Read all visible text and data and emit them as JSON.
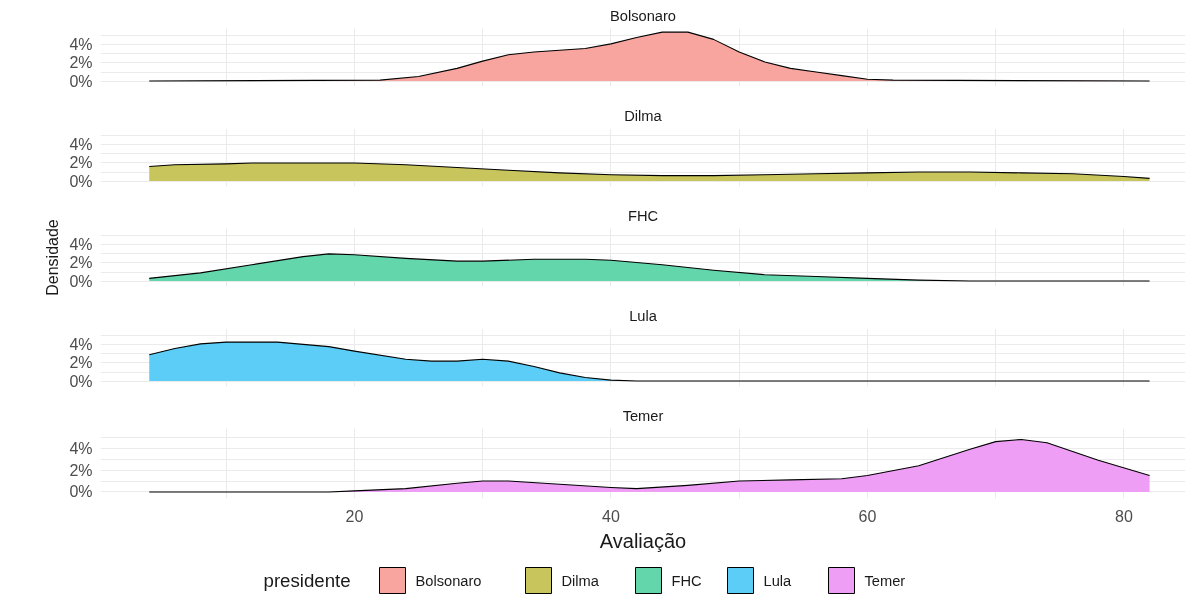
{
  "chart_data": [
    {
      "type": "area",
      "title": "Bolsonaro",
      "legend": "bottom",
      "legend_title": "presidente",
      "grid": true,
      "tick_labels": "y",
      "xlim": [
        0.2,
        84.8
      ],
      "ylim": [
        -0.6,
        5.8
      ],
      "xticks": [
        {
          "value": 10,
          "label": null
        },
        20,
        {
          "value": 30,
          "label": null
        },
        40,
        {
          "value": 50,
          "label": null
        },
        60,
        {
          "value": 70,
          "label": null
        },
        80
      ],
      "yticks": [
        {
          "value": 0,
          "label": "0%"
        },
        {
          "value": 1,
          "label": null
        },
        {
          "value": 2,
          "label": "2%"
        },
        {
          "value": 3,
          "label": null
        },
        {
          "value": 4,
          "label": "4%"
        },
        {
          "value": 5,
          "label": null
        }
      ],
      "x": [
        4,
        22,
        25,
        28,
        30,
        32,
        34,
        36,
        38,
        40,
        42,
        44,
        46,
        48,
        50,
        52,
        54,
        56,
        58,
        60,
        62,
        82
      ],
      "series": [
        {
          "name": "Bolsonaro",
          "color": "#f9a59f",
          "values": [
            0,
            0.1,
            0.5,
            1.4,
            2.2,
            2.9,
            3.2,
            3.4,
            3.6,
            4.1,
            4.8,
            5.4,
            5.4,
            4.6,
            3.2,
            2.1,
            1.4,
            1.0,
            0.6,
            0.2,
            0.1,
            0
          ]
        }
      ]
    },
    {
      "type": "area",
      "title": "Dilma",
      "legend": "bottom",
      "grid": true,
      "tick_labels": "y",
      "xlim": [
        0.2,
        84.8
      ],
      "ylim": [
        -0.6,
        5.8
      ],
      "xticks": [
        {
          "value": 10,
          "label": null
        },
        20,
        {
          "value": 30,
          "label": null
        },
        40,
        {
          "value": 50,
          "label": null
        },
        60,
        {
          "value": 70,
          "label": null
        },
        80
      ],
      "yticks": [
        {
          "value": 0,
          "label": "0%"
        },
        {
          "value": 1,
          "label": null
        },
        {
          "value": 2,
          "label": "2%"
        },
        {
          "value": 3,
          "label": null
        },
        {
          "value": 4,
          "label": "4%"
        },
        {
          "value": 5,
          "label": null
        }
      ],
      "x": [
        4,
        6,
        10,
        12,
        20,
        24,
        28,
        32,
        36,
        40,
        44,
        48,
        52,
        56,
        60,
        64,
        68,
        72,
        76,
        80,
        82
      ],
      "series": [
        {
          "name": "Dilma",
          "color": "#c8c55c",
          "values": [
            1.6,
            1.8,
            1.9,
            2.0,
            2.0,
            1.8,
            1.5,
            1.2,
            0.9,
            0.7,
            0.6,
            0.6,
            0.7,
            0.8,
            0.9,
            1.0,
            1.0,
            0.9,
            0.8,
            0.5,
            0.3
          ]
        }
      ]
    },
    {
      "type": "area",
      "title": "FHC",
      "ylabel": "Densidade",
      "legend": "bottom",
      "grid": true,
      "tick_labels": "y",
      "xlim": [
        0.2,
        84.8
      ],
      "ylim": [
        -0.6,
        5.8
      ],
      "xticks": [
        {
          "value": 10,
          "label": null
        },
        20,
        {
          "value": 30,
          "label": null
        },
        40,
        {
          "value": 50,
          "label": null
        },
        60,
        {
          "value": 70,
          "label": null
        },
        80
      ],
      "yticks": [
        {
          "value": 0,
          "label": "0%"
        },
        {
          "value": 1,
          "label": null
        },
        {
          "value": 2,
          "label": "2%"
        },
        {
          "value": 3,
          "label": null
        },
        {
          "value": 4,
          "label": "4%"
        },
        {
          "value": 5,
          "label": null
        }
      ],
      "x": [
        4,
        8,
        12,
        16,
        18,
        20,
        24,
        28,
        30,
        34,
        38,
        40,
        44,
        48,
        52,
        56,
        60,
        64,
        68,
        82
      ],
      "series": [
        {
          "name": "FHC",
          "color": "#64d6ab",
          "values": [
            0.3,
            0.9,
            1.8,
            2.7,
            3.0,
            2.9,
            2.5,
            2.2,
            2.2,
            2.4,
            2.4,
            2.3,
            1.8,
            1.2,
            0.7,
            0.5,
            0.3,
            0.1,
            0,
            0
          ]
        }
      ]
    },
    {
      "type": "area",
      "title": "Lula",
      "legend": "bottom",
      "grid": true,
      "tick_labels": "y",
      "xlim": [
        0.2,
        84.8
      ],
      "ylim": [
        -0.6,
        5.8
      ],
      "xticks": [
        {
          "value": 10,
          "label": null
        },
        20,
        {
          "value": 30,
          "label": null
        },
        40,
        {
          "value": 50,
          "label": null
        },
        60,
        {
          "value": 70,
          "label": null
        },
        80
      ],
      "yticks": [
        {
          "value": 0,
          "label": "0%"
        },
        {
          "value": 1,
          "label": null
        },
        {
          "value": 2,
          "label": "2%"
        },
        {
          "value": 3,
          "label": null
        },
        {
          "value": 4,
          "label": "4%"
        },
        {
          "value": 5,
          "label": null
        }
      ],
      "x": [
        4,
        6,
        8,
        10,
        14,
        18,
        20,
        24,
        26,
        28,
        30,
        32,
        34,
        36,
        38,
        40,
        42,
        82
      ],
      "series": [
        {
          "name": "Lula",
          "color": "#5bcdf6",
          "values": [
            2.9,
            3.6,
            4.1,
            4.3,
            4.3,
            3.8,
            3.3,
            2.4,
            2.2,
            2.2,
            2.4,
            2.2,
            1.6,
            0.9,
            0.4,
            0.1,
            0,
            0
          ]
        }
      ]
    },
    {
      "type": "area",
      "title": "Temer",
      "xlabel": "Avaliação",
      "legend": "bottom",
      "grid": true,
      "xlim": [
        0.2,
        84.8
      ],
      "ylim": [
        -0.6,
        5.8
      ],
      "xticks": [
        {
          "value": 10,
          "label": null
        },
        20,
        {
          "value": 30,
          "label": null
        },
        40,
        {
          "value": 50,
          "label": null
        },
        60,
        {
          "value": 70,
          "label": null
        },
        80
      ],
      "yticks": [
        {
          "value": 0,
          "label": "0%"
        },
        {
          "value": 1,
          "label": null
        },
        {
          "value": 2,
          "label": "2%"
        },
        {
          "value": 3,
          "label": null
        },
        {
          "value": 4,
          "label": "4%"
        },
        {
          "value": 5,
          "label": null
        }
      ],
      "x": [
        4,
        18,
        20,
        24,
        28,
        30,
        32,
        36,
        40,
        42,
        46,
        50,
        54,
        58,
        60,
        64,
        68,
        70,
        72,
        74,
        78,
        82
      ],
      "series": [
        {
          "name": "Temer",
          "color": "#ee9ef5",
          "values": [
            0,
            0,
            0.1,
            0.3,
            0.8,
            1.0,
            1.0,
            0.7,
            0.4,
            0.3,
            0.6,
            1.0,
            1.1,
            1.2,
            1.5,
            2.4,
            3.9,
            4.6,
            4.8,
            4.5,
            2.9,
            1.5
          ]
        }
      ]
    }
  ]
}
